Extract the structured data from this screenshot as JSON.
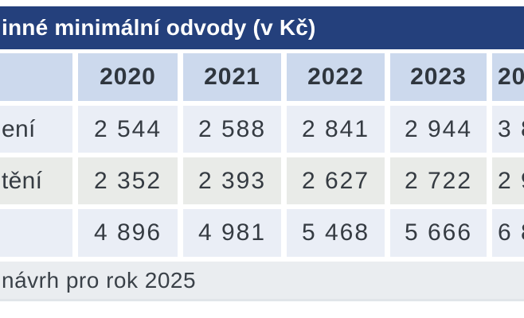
{
  "page": {
    "title": "inné minimální odvody (v Kč)",
    "footnote": "návrh pro rok 2025"
  },
  "table": {
    "col_headers": [
      "",
      "2020",
      "2021",
      "2022",
      "2023",
      "20"
    ],
    "rows": [
      {
        "label": "ení",
        "values": [
          "2 544",
          "2 588",
          "2 841",
          "2 944",
          "3 8"
        ]
      },
      {
        "label": "tění",
        "values": [
          "2 352",
          "2 393",
          "2 627",
          "2 722",
          "2 9"
        ]
      },
      {
        "label": "",
        "values": [
          "4 896",
          "4 981",
          "5 468",
          "5 666",
          "6 8"
        ]
      }
    ]
  },
  "chart_data": {
    "type": "table",
    "title": "inné minimální odvody (v Kč)",
    "columns": [
      "2020",
      "2021",
      "2022",
      "2023",
      "20"
    ],
    "rows": [
      {
        "label": "ení",
        "values": [
          "2 544",
          "2 588",
          "2 841",
          "2 944",
          "3 8"
        ]
      },
      {
        "label": "tění",
        "values": [
          "2 352",
          "2 393",
          "2 627",
          "2 722",
          "2 9"
        ]
      },
      {
        "label": "",
        "values": [
          "4 896",
          "4 981",
          "5 468",
          "5 666",
          "6 8"
        ]
      }
    ],
    "footnote": "návrh pro rok 2025",
    "layout": {
      "header_position": "top-and-left",
      "grid": "white gaps between cells",
      "legend": "none"
    }
  },
  "colors": {
    "title_bar": "#24407c",
    "title_text": "#ffffff",
    "header_cell": "#ccd9ed",
    "row_blue": "#eaeef6",
    "row_gray": "#e9ebe8",
    "footer_bg": "#eaedf0",
    "text": "#353b42",
    "gap": "#ffffff"
  }
}
